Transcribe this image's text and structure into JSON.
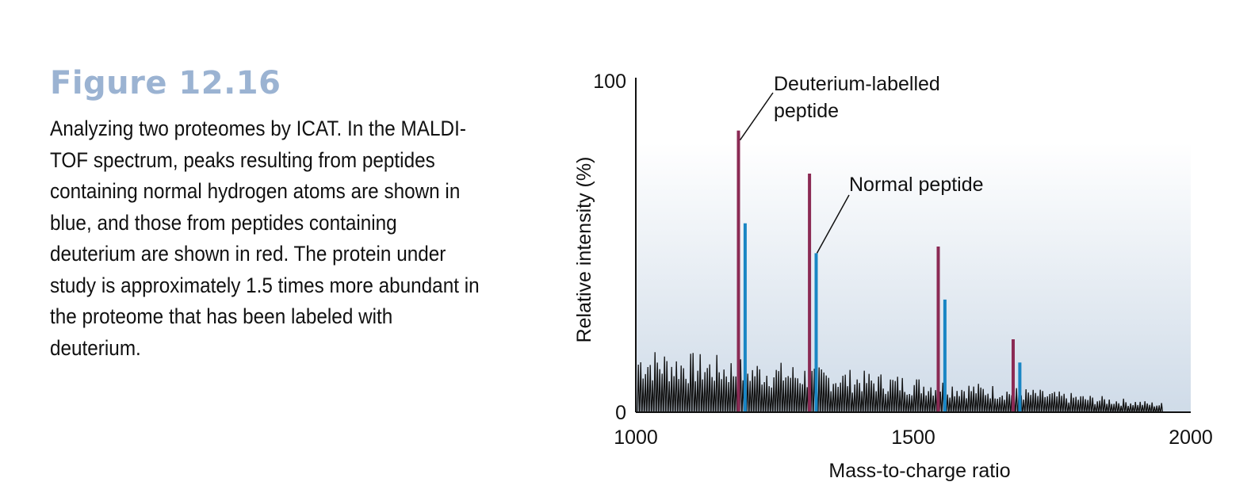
{
  "figure": {
    "title": "Figure 12.16",
    "caption": "Analyzing two proteomes by ICAT. In the MALDI-TOF spectrum, peaks resulting from peptides containing normal hydrogen atoms are shown in blue, and those from peptides containing deuterium are shown in red. The protein under study is approximately 1.5 times more abundant in the proteome that has been labeled with deuterium."
  },
  "colors": {
    "deuterium": "#8b2a54",
    "normal": "#1a86c4",
    "background_top": "#ffffff",
    "background_bottom": "#cfdbe8",
    "title": "#9bb3d2"
  },
  "chart_data": {
    "type": "bar",
    "title": "",
    "xlabel": "Mass-to-charge ratio",
    "ylabel": "Relative intensity (%)",
    "xlim": [
      1000,
      2000
    ],
    "ylim": [
      0,
      100
    ],
    "xticks": [
      1000,
      1500,
      2000
    ],
    "yticks": [
      0,
      100
    ],
    "series": [
      {
        "name": "Deuterium-labelled peptide",
        "color": "#8b2a54",
        "x": [
          1185,
          1313,
          1545,
          1680
        ],
        "values": [
          85,
          72,
          50,
          22
        ]
      },
      {
        "name": "Normal peptide",
        "color": "#1a86c4",
        "x": [
          1197,
          1325,
          1557,
          1692
        ],
        "values": [
          57,
          48,
          34,
          15
        ]
      }
    ],
    "annotations": [
      {
        "lines": [
          "Deuterium-labelled",
          "peptide"
        ],
        "target_series": 0,
        "target_index": 0
      },
      {
        "lines": [
          "Normal peptide"
        ],
        "target_series": 1,
        "target_index": 1
      }
    ]
  }
}
